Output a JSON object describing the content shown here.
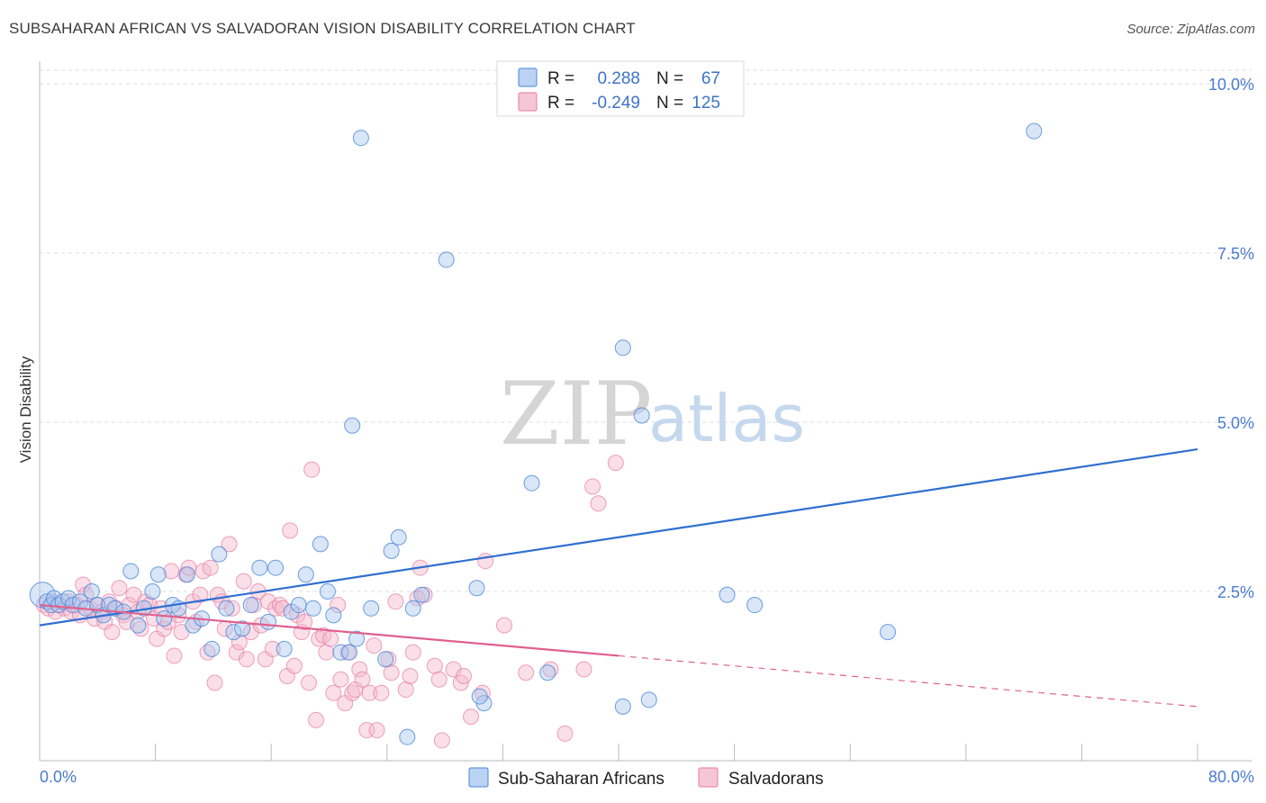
{
  "title": "SUBSAHARAN AFRICAN VS SALVADORAN VISION DISABILITY CORRELATION CHART",
  "source": "Source: ZipAtlas.com",
  "watermark": {
    "zip": "ZIP",
    "atlas": "atlas"
  },
  "colors": {
    "blue": "#4a86d8",
    "blue_fill": "#a9c8f0",
    "pink": "#e77aa0",
    "pink_fill": "#f4b8cc",
    "blue_line": "#2f6fd0",
    "pink_line": "#e0608e",
    "grid": "#dcdcdc"
  },
  "legend": {
    "rows": [
      {
        "r_label": "R =",
        "r_value": "0.288",
        "n_label": "N =",
        "n_value": "67"
      },
      {
        "r_label": "R =",
        "r_value": "-0.249",
        "n_label": "N =",
        "n_value": "125"
      }
    ]
  },
  "bottom_legend": [
    "Sub-Saharan Africans",
    "Salvadorans"
  ],
  "chart_data": {
    "type": "scatter",
    "title": "SUBSAHARAN AFRICAN VS SALVADORAN VISION DISABILITY CORRELATION CHART",
    "ylabel": "Vision Disability",
    "xlabel": "",
    "xlim": [
      0,
      80
    ],
    "ylim": [
      0,
      10.2
    ],
    "x_tick_labels": [
      "0.0%",
      "80.0%"
    ],
    "y_ticks": [
      2.5,
      5.0,
      7.5,
      10.0
    ],
    "y_tick_labels": [
      "2.5%",
      "5.0%",
      "7.5%",
      "10.0%"
    ],
    "grid": true,
    "legend_position": "top-center",
    "series": [
      {
        "name": "Sub-Saharan Africans",
        "R": 0.288,
        "N": 67,
        "trend": {
          "x": [
            0,
            80
          ],
          "y": [
            2.0,
            4.6
          ]
        },
        "points": [
          [
            0.2,
            2.45
          ],
          [
            0.5,
            2.35
          ],
          [
            0.8,
            2.3
          ],
          [
            1.0,
            2.4
          ],
          [
            1.3,
            2.3
          ],
          [
            1.6,
            2.35
          ],
          [
            2.0,
            2.4
          ],
          [
            2.3,
            2.3
          ],
          [
            2.8,
            2.35
          ],
          [
            3.2,
            2.25
          ],
          [
            3.6,
            2.5
          ],
          [
            4.0,
            2.3
          ],
          [
            4.4,
            2.15
          ],
          [
            4.8,
            2.3
          ],
          [
            5.2,
            2.25
          ],
          [
            5.8,
            2.2
          ],
          [
            6.3,
            2.8
          ],
          [
            6.8,
            2.0
          ],
          [
            7.2,
            2.25
          ],
          [
            7.8,
            2.5
          ],
          [
            8.2,
            2.75
          ],
          [
            8.6,
            2.1
          ],
          [
            9.2,
            2.3
          ],
          [
            9.6,
            2.25
          ],
          [
            10.2,
            2.75
          ],
          [
            10.6,
            2.0
          ],
          [
            11.2,
            2.1
          ],
          [
            11.9,
            1.65
          ],
          [
            12.4,
            3.05
          ],
          [
            12.9,
            2.25
          ],
          [
            13.4,
            1.9
          ],
          [
            14.0,
            1.95
          ],
          [
            14.6,
            2.3
          ],
          [
            15.2,
            2.85
          ],
          [
            15.8,
            2.05
          ],
          [
            16.3,
            2.85
          ],
          [
            16.9,
            1.65
          ],
          [
            17.4,
            2.2
          ],
          [
            17.9,
            2.3
          ],
          [
            18.4,
            2.75
          ],
          [
            18.9,
            2.25
          ],
          [
            19.4,
            3.2
          ],
          [
            19.9,
            2.5
          ],
          [
            20.3,
            2.15
          ],
          [
            20.8,
            1.6
          ],
          [
            21.4,
            1.6
          ],
          [
            21.9,
            1.8
          ],
          [
            22.2,
            9.2
          ],
          [
            21.6,
            4.95
          ],
          [
            22.9,
            2.25
          ],
          [
            23.9,
            1.5
          ],
          [
            24.3,
            3.1
          ],
          [
            24.8,
            3.3
          ],
          [
            25.4,
            0.35
          ],
          [
            25.8,
            2.25
          ],
          [
            26.4,
            2.45
          ],
          [
            28.1,
            7.4
          ],
          [
            30.7,
            0.85
          ],
          [
            30.4,
            0.95
          ],
          [
            30.2,
            2.55
          ],
          [
            34.0,
            4.1
          ],
          [
            35.1,
            1.3
          ],
          [
            40.3,
            6.1
          ],
          [
            40.3,
            0.8
          ],
          [
            41.6,
            5.1
          ],
          [
            42.1,
            0.9
          ],
          [
            47.5,
            2.45
          ],
          [
            49.4,
            2.3
          ],
          [
            58.6,
            1.9
          ],
          [
            68.7,
            9.3
          ]
        ]
      },
      {
        "name": "Salvadorans",
        "R": -0.249,
        "N": 125,
        "trend": {
          "x": [
            0,
            40
          ],
          "y": [
            2.3,
            1.55
          ]
        },
        "trend_dashed": {
          "x": [
            40,
            80
          ],
          "y": [
            1.55,
            0.8
          ]
        },
        "points": [
          [
            0.3,
            2.3
          ],
          [
            0.6,
            2.25
          ],
          [
            0.9,
            2.35
          ],
          [
            1.1,
            2.2
          ],
          [
            1.4,
            2.3
          ],
          [
            1.7,
            2.25
          ],
          [
            2.0,
            2.35
          ],
          [
            2.2,
            2.2
          ],
          [
            2.5,
            2.3
          ],
          [
            2.8,
            2.15
          ],
          [
            3.0,
            2.6
          ],
          [
            3.2,
            2.45
          ],
          [
            3.5,
            2.25
          ],
          [
            3.8,
            2.1
          ],
          [
            4.0,
            2.3
          ],
          [
            4.3,
            2.2
          ],
          [
            4.5,
            2.05
          ],
          [
            4.8,
            2.35
          ],
          [
            5.0,
            1.9
          ],
          [
            5.3,
            2.25
          ],
          [
            5.5,
            2.55
          ],
          [
            5.8,
            2.15
          ],
          [
            6.0,
            2.05
          ],
          [
            6.2,
            2.3
          ],
          [
            6.5,
            2.45
          ],
          [
            6.8,
            2.2
          ],
          [
            7.0,
            1.95
          ],
          [
            7.3,
            2.35
          ],
          [
            7.6,
            2.3
          ],
          [
            7.9,
            2.1
          ],
          [
            8.1,
            1.8
          ],
          [
            8.4,
            2.25
          ],
          [
            8.6,
            1.95
          ],
          [
            8.9,
            2.05
          ],
          [
            9.1,
            2.8
          ],
          [
            9.3,
            1.55
          ],
          [
            9.6,
            2.15
          ],
          [
            9.8,
            1.9
          ],
          [
            10.1,
            2.75
          ],
          [
            10.3,
            2.85
          ],
          [
            10.6,
            2.35
          ],
          [
            10.8,
            2.05
          ],
          [
            11.1,
            2.45
          ],
          [
            11.3,
            2.8
          ],
          [
            11.6,
            1.6
          ],
          [
            11.8,
            2.85
          ],
          [
            12.1,
            1.15
          ],
          [
            12.3,
            2.45
          ],
          [
            12.6,
            2.35
          ],
          [
            12.8,
            1.95
          ],
          [
            13.1,
            3.2
          ],
          [
            13.3,
            2.25
          ],
          [
            13.6,
            1.6
          ],
          [
            13.8,
            1.75
          ],
          [
            14.1,
            2.65
          ],
          [
            14.3,
            1.5
          ],
          [
            14.6,
            1.9
          ],
          [
            14.8,
            2.3
          ],
          [
            15.1,
            2.5
          ],
          [
            15.3,
            2.0
          ],
          [
            15.6,
            1.5
          ],
          [
            15.8,
            2.35
          ],
          [
            16.1,
            1.65
          ],
          [
            16.3,
            2.25
          ],
          [
            16.6,
            2.3
          ],
          [
            16.8,
            2.25
          ],
          [
            17.1,
            1.25
          ],
          [
            17.3,
            3.4
          ],
          [
            17.6,
            1.4
          ],
          [
            17.8,
            2.15
          ],
          [
            18.1,
            1.9
          ],
          [
            18.3,
            2.05
          ],
          [
            18.6,
            1.15
          ],
          [
            18.8,
            4.3
          ],
          [
            19.1,
            0.6
          ],
          [
            19.3,
            1.8
          ],
          [
            19.6,
            1.85
          ],
          [
            19.8,
            1.6
          ],
          [
            20.1,
            1.8
          ],
          [
            20.3,
            1.0
          ],
          [
            20.6,
            2.3
          ],
          [
            20.8,
            1.2
          ],
          [
            21.1,
            0.85
          ],
          [
            21.3,
            1.6
          ],
          [
            21.6,
            1.0
          ],
          [
            21.8,
            1.05
          ],
          [
            22.1,
            1.35
          ],
          [
            22.3,
            1.2
          ],
          [
            22.6,
            0.45
          ],
          [
            22.8,
            1.0
          ],
          [
            23.1,
            1.7
          ],
          [
            23.3,
            0.45
          ],
          [
            23.6,
            1.0
          ],
          [
            24.1,
            1.5
          ],
          [
            24.3,
            1.3
          ],
          [
            24.6,
            2.35
          ],
          [
            25.3,
            1.05
          ],
          [
            25.6,
            1.25
          ],
          [
            25.8,
            1.6
          ],
          [
            26.1,
            2.4
          ],
          [
            26.3,
            2.85
          ],
          [
            26.6,
            2.45
          ],
          [
            27.3,
            1.4
          ],
          [
            27.6,
            1.2
          ],
          [
            27.8,
            0.3
          ],
          [
            28.6,
            1.35
          ],
          [
            29.1,
            1.15
          ],
          [
            29.3,
            1.25
          ],
          [
            29.8,
            0.65
          ],
          [
            30.6,
            1.0
          ],
          [
            30.8,
            2.95
          ],
          [
            32.1,
            2.0
          ],
          [
            33.6,
            1.3
          ],
          [
            35.3,
            1.35
          ],
          [
            36.3,
            0.4
          ],
          [
            37.6,
            1.35
          ],
          [
            38.2,
            4.05
          ],
          [
            38.6,
            3.8
          ],
          [
            39.8,
            4.4
          ]
        ]
      }
    ]
  }
}
